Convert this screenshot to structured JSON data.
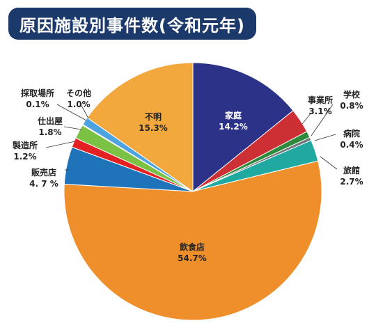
{
  "title": "原因施設別事件数(令和元年)",
  "colors": {
    "banner": "#1b3a6b",
    "background": "#ffffff"
  },
  "chart_data": {
    "type": "pie",
    "title": "原因施設別事件数(令和元年)",
    "start_angle_deg": 0,
    "direction": "clockwise",
    "slices": [
      {
        "name": "家庭",
        "value": 14.2,
        "value_label": "14.2%",
        "color": "#2b3288",
        "label_color": "#ffffff"
      },
      {
        "name": "事業所",
        "value": 3.1,
        "value_label": "3.1%",
        "color": "#cc2f34",
        "label_color": "#222222"
      },
      {
        "name": "学校",
        "value": 0.8,
        "value_label": "0.8%",
        "color": "#2e8b3b",
        "label_color": "#222222"
      },
      {
        "name": "病院",
        "value": 0.4,
        "value_label": "0.4%",
        "color": "#6f747a",
        "label_color": "#222222"
      },
      {
        "name": "旅館",
        "value": 2.7,
        "value_label": "2.7%",
        "color": "#1fa9a0",
        "label_color": "#222222"
      },
      {
        "name": "飲食店",
        "value": 54.7,
        "value_label": "54.7%",
        "color": "#ee8f2b",
        "label_color": "#222222"
      },
      {
        "name": "販売店",
        "value": 4.7,
        "value_label": "4. 7 %",
        "color": "#1f74b9",
        "label_color": "#222222"
      },
      {
        "name": "製造所",
        "value": 1.2,
        "value_label": "1.2%",
        "color": "#e32124",
        "label_color": "#222222"
      },
      {
        "name": "仕出屋",
        "value": 1.8,
        "value_label": "1.8%",
        "color": "#7bc143",
        "label_color": "#222222"
      },
      {
        "name": "採取場所",
        "value": 0.1,
        "value_label": "0.1%",
        "color": "#8ec63f",
        "label_color": "#222222"
      },
      {
        "name": "その他",
        "value": 1.0,
        "value_label": "1.0%",
        "color": "#4da3e0",
        "label_color": "#222222"
      },
      {
        "name": "不明",
        "value": 15.3,
        "value_label": "15.3%",
        "color": "#f2a83c",
        "label_color": "#222222"
      }
    ]
  }
}
